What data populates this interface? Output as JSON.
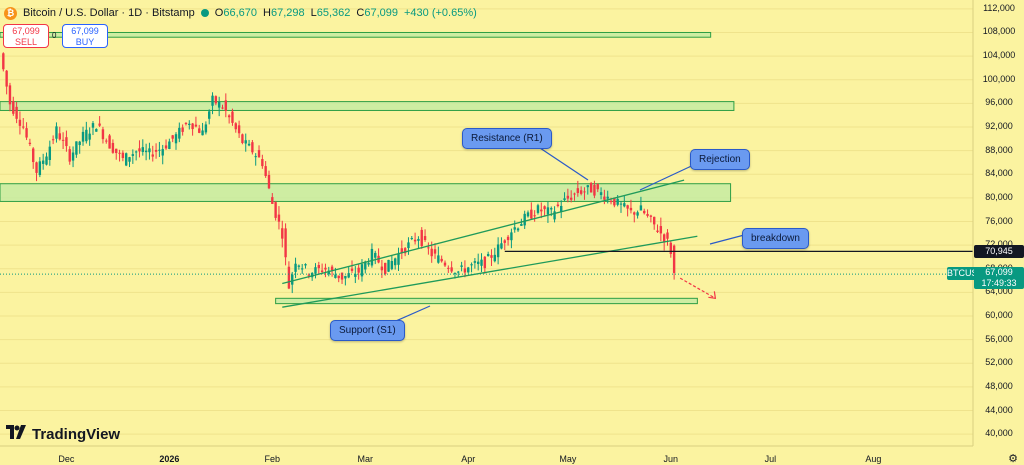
{
  "header": {
    "symbol_title": "Bitcoin / U.S. Dollar · 1D · Bitstamp",
    "open_label": "O",
    "open": "66,670",
    "high_label": "H",
    "high": "67,298",
    "low_label": "L",
    "low": "65,362",
    "close_label": "C",
    "close": "67,099",
    "change": "+430 (+0.65%)"
  },
  "trade": {
    "sell_price": "67,099",
    "sell_label": "SELL",
    "spread": "0",
    "buy_price": "67,099",
    "buy_label": "BUY"
  },
  "annotations": {
    "resistance": "Resistance (R1)",
    "rejection": "Rejection",
    "breakdown": "breakdown",
    "support": "Support (S1)"
  },
  "price_tags": {
    "level": "70,945",
    "symbol": "BTCUSD",
    "price": "67,099",
    "countdown": "17:49:33"
  },
  "brand": {
    "name": "TradingView"
  },
  "colors": {
    "background": "#fbf3a0",
    "up": "#089981",
    "down": "#f23645",
    "zone_fill": "#c6eba2",
    "zone_border": "#2e9e44",
    "channel": "#1f9a5a",
    "callout": "#6a9af0"
  },
  "chart_data": {
    "type": "candlestick",
    "symbol": "BTCUSD",
    "interval": "1D",
    "x_ticks": [
      "Dec",
      "2026",
      "Feb",
      "Mar",
      "Apr",
      "May",
      "Jun",
      "Jul",
      "Aug"
    ],
    "y_ticks": [
      40000,
      44000,
      48000,
      52000,
      56000,
      60000,
      64000,
      68000,
      72000,
      76000,
      80000,
      84000,
      88000,
      92000,
      96000,
      100000,
      104000,
      108000,
      112000
    ],
    "y_tick_labels": [
      "40,000",
      "44,000",
      "48,000",
      "52,000",
      "56,000",
      "60,000",
      "64,000",
      "68,000",
      "72,000",
      "76,000",
      "80,000",
      "84,000",
      "88,000",
      "92,000",
      "96,000",
      "100,000",
      "104,000",
      "108,000",
      "112,000"
    ],
    "ylim": [
      38000,
      113500
    ],
    "x_range": [
      "2025-11-11",
      "2026-08-31"
    ],
    "price_path": [
      [
        "2025-11-11",
        104500
      ],
      [
        "2025-11-14",
        96000
      ],
      [
        "2025-11-18",
        92000
      ],
      [
        "2025-11-22",
        84500
      ],
      [
        "2025-11-25",
        87500
      ],
      [
        "2025-11-28",
        91500
      ],
      [
        "2025-12-02",
        87000
      ],
      [
        "2025-12-06",
        90500
      ],
      [
        "2025-12-10",
        92500
      ],
      [
        "2025-12-14",
        89000
      ],
      [
        "2025-12-18",
        86500
      ],
      [
        "2025-12-22",
        88000
      ],
      [
        "2025-12-26",
        87500
      ],
      [
        "2025-12-30",
        88500
      ],
      [
        "2026-01-03",
        90500
      ],
      [
        "2026-01-07",
        93000
      ],
      [
        "2026-01-11",
        91000
      ],
      [
        "2026-01-14",
        96500
      ],
      [
        "2026-01-17",
        95500
      ],
      [
        "2026-01-20",
        92500
      ],
      [
        "2026-01-23",
        89500
      ],
      [
        "2026-01-26",
        88000
      ],
      [
        "2026-01-29",
        86000
      ],
      [
        "2026-02-01",
        79000
      ],
      [
        "2026-02-04",
        74000
      ],
      [
        "2026-02-06",
        65000
      ],
      [
        "2026-02-08",
        69500
      ],
      [
        "2026-02-12",
        67500
      ],
      [
        "2026-02-17",
        68000
      ],
      [
        "2026-02-22",
        66500
      ],
      [
        "2026-02-27",
        67500
      ],
      [
        "2026-03-03",
        70500
      ],
      [
        "2026-03-07",
        68000
      ],
      [
        "2026-03-12",
        71000
      ],
      [
        "2026-03-17",
        73500
      ],
      [
        "2026-03-21",
        70500
      ],
      [
        "2026-03-25",
        69000
      ],
      [
        "2026-03-29",
        67500
      ],
      [
        "2026-04-02",
        68500
      ],
      [
        "2026-04-06",
        69000
      ],
      [
        "2026-04-10",
        71500
      ],
      [
        "2026-04-14",
        74500
      ],
      [
        "2026-04-18",
        76500
      ],
      [
        "2026-04-22",
        78000
      ],
      [
        "2026-04-26",
        77500
      ],
      [
        "2026-04-30",
        79500
      ],
      [
        "2026-05-04",
        81000
      ],
      [
        "2026-05-08",
        81500
      ],
      [
        "2026-05-12",
        80500
      ],
      [
        "2026-05-16",
        79000
      ],
      [
        "2026-05-20",
        77500
      ],
      [
        "2026-05-23",
        78000
      ],
      [
        "2026-05-26",
        76000
      ],
      [
        "2026-05-29",
        74000
      ],
      [
        "2026-05-31",
        72500
      ],
      [
        "2026-06-01",
        71000
      ],
      [
        "2026-06-02",
        67099
      ]
    ],
    "zones": [
      {
        "from": 107200,
        "to": 108000,
        "start": "2025-11-11",
        "end": "2026-06-13"
      },
      {
        "from": 94800,
        "to": 96300,
        "start": "2025-11-11",
        "end": "2026-06-20"
      },
      {
        "from": 79400,
        "to": 82400,
        "start": "2025-11-11",
        "end": "2026-06-19"
      },
      {
        "from": 62100,
        "to": 63000,
        "start": "2026-02-02",
        "end": "2026-06-09"
      }
    ],
    "trendlines": [
      {
        "name": "Resistance (R1)",
        "from": [
          "2026-02-04",
          65500
        ],
        "to": [
          "2026-06-05",
          83000
        ]
      },
      {
        "name": "Support (S1)",
        "from": [
          "2026-02-04",
          61500
        ],
        "to": [
          "2026-06-09",
          73500
        ]
      },
      {
        "name": "level",
        "from": [
          "2026-04-12",
          70945
        ],
        "to": [
          "2026-08-31",
          70945
        ]
      }
    ],
    "projection": {
      "from": [
        "2026-06-02",
        67099
      ],
      "to": [
        "2026-06-09",
        63000
      ]
    },
    "last_price": 67099,
    "level": 70945
  }
}
